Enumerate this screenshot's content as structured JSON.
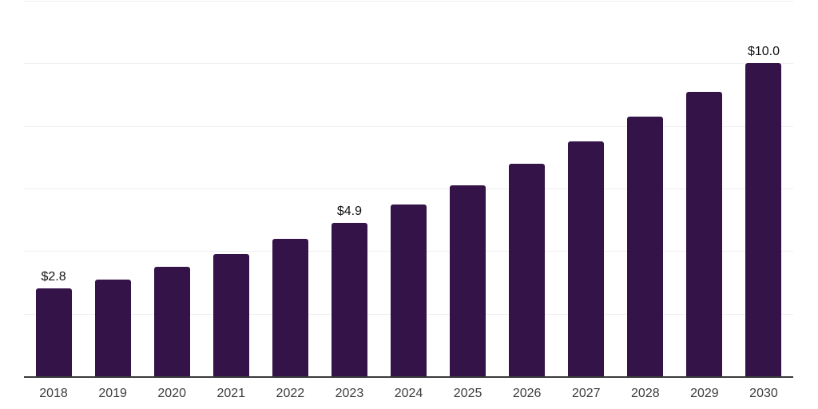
{
  "chart_data": {
    "type": "bar",
    "title": "",
    "xlabel": "",
    "ylabel": "",
    "categories": [
      "2018",
      "2019",
      "2020",
      "2021",
      "2022",
      "2023",
      "2024",
      "2025",
      "2026",
      "2027",
      "2028",
      "2029",
      "2030"
    ],
    "values": [
      2.8,
      3.1,
      3.5,
      3.9,
      4.4,
      4.9,
      5.5,
      6.1,
      6.8,
      7.5,
      8.3,
      9.1,
      10.0
    ],
    "bar_labels": [
      "$2.8",
      "",
      "",
      "",
      "",
      "$4.9",
      "",
      "",
      "",
      "",
      "",
      "",
      "$10.0"
    ],
    "ylim": [
      0,
      12
    ],
    "gridline_step": 2,
    "grid_on": true,
    "legend": "none",
    "colors": {
      "bar": "#341349",
      "gridline": "#efefef",
      "axis_line": "#3a3a3a",
      "tick_label": "#3d3d3d",
      "value_label": "#121212",
      "background": "#ffffff"
    }
  }
}
